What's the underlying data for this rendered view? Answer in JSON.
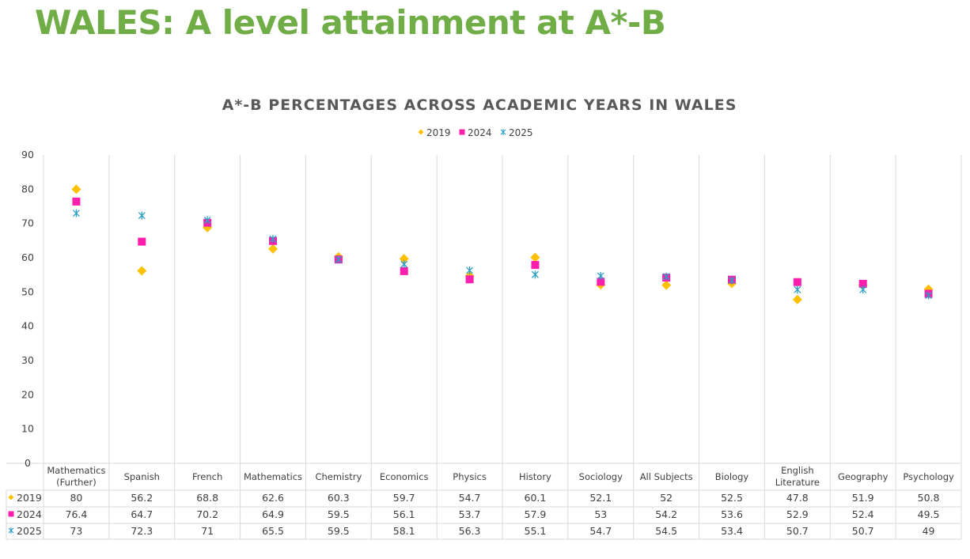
{
  "slide": {
    "title": "WALES: A level attainment at A*-B"
  },
  "colors": {
    "title": "#70ad47",
    "2019": "#ffc000",
    "2024": "#ff1fae",
    "2025": "#2a9fc4",
    "grid": "#d9d9d9"
  },
  "chart_data": {
    "type": "scatter",
    "title": "A*-B PERCENTAGES ACROSS ACADEMIC YEARS IN WALES",
    "legend_position": "top",
    "grid": true,
    "ylim": [
      0,
      90
    ],
    "yticks": [
      "0",
      "10",
      "20",
      "30",
      "40",
      "50",
      "60",
      "70",
      "80",
      "90"
    ],
    "categories": [
      [
        "Mathematics",
        "(Further)"
      ],
      [
        "Spanish"
      ],
      [
        "French"
      ],
      [
        "Mathematics"
      ],
      [
        "Chemistry"
      ],
      [
        "Economics"
      ],
      [
        "Physics"
      ],
      [
        "History"
      ],
      [
        "Sociology"
      ],
      [
        "All Subjects"
      ],
      [
        "Biology"
      ],
      [
        "English",
        "Literature"
      ],
      [
        "Geography"
      ],
      [
        "Psychology"
      ]
    ],
    "series": [
      {
        "name": "2019",
        "marker": "diamond",
        "values": [
          80,
          56.2,
          68.8,
          62.6,
          60.3,
          59.7,
          54.7,
          60.1,
          52.1,
          52,
          52.5,
          47.8,
          51.9,
          50.8
        ]
      },
      {
        "name": "2024",
        "marker": "square",
        "values": [
          76.4,
          64.7,
          70.2,
          64.9,
          59.5,
          56.1,
          53.7,
          57.9,
          53,
          54.2,
          53.6,
          52.9,
          52.4,
          49.5
        ]
      },
      {
        "name": "2025",
        "marker": "star",
        "values": [
          73,
          72.3,
          71,
          65.5,
          59.5,
          58.1,
          56.3,
          55.1,
          54.7,
          54.5,
          53.4,
          50.7,
          50.7,
          49
        ]
      }
    ]
  }
}
